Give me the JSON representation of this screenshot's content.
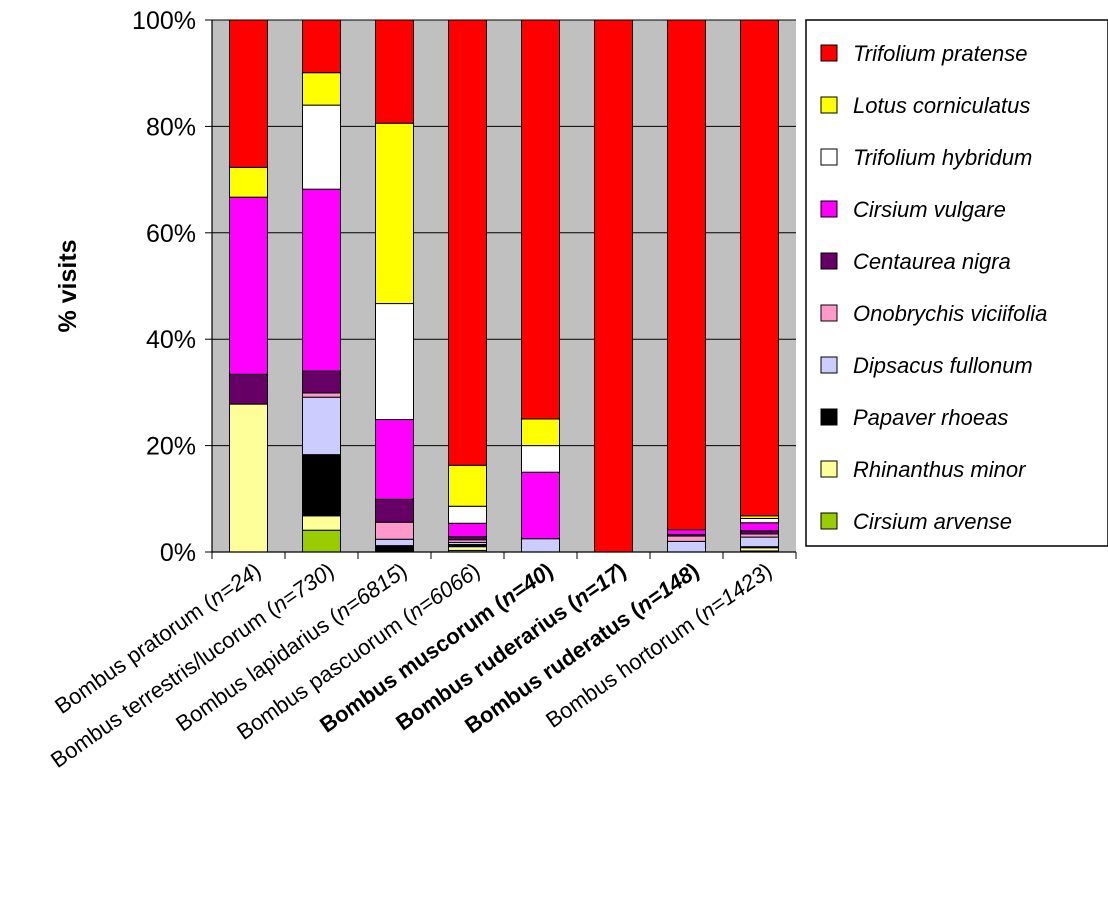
{
  "chart_data": {
    "type": "bar",
    "stacked": true,
    "normalized_percent": true,
    "title": "",
    "ylabel": "% visits",
    "xlabel": "",
    "ylim": [
      0,
      100
    ],
    "yticks": [
      "0%",
      "20%",
      "40%",
      "60%",
      "80%",
      "100%"
    ],
    "grid": "horizontal",
    "plot_background": "#c0c0c0",
    "legend_position": "right",
    "categories": [
      {
        "species": "Bombus pratorum",
        "n": "n=24",
        "bold": false
      },
      {
        "species": "Bombus terrestris/lucorum",
        "n": "n=730",
        "bold": false
      },
      {
        "species": "Bombus lapidarius",
        "n": "n=6815",
        "bold": false
      },
      {
        "species": "Bombus pascuorum",
        "n": "n=6066",
        "bold": false
      },
      {
        "species": "Bombus muscorum",
        "n": "n=40",
        "bold": true
      },
      {
        "species": "Bombus ruderarius",
        "n": "n=17",
        "bold": true
      },
      {
        "species": "Bombus ruderatus",
        "n": "n=148",
        "bold": true
      },
      {
        "species": "Bombus hortorum",
        "n": "n=1423",
        "bold": false
      }
    ],
    "series": [
      {
        "name": "Cirsium arvense",
        "color": "#99cc00",
        "values": [
          0,
          4.1,
          0,
          0.3,
          0,
          0,
          0,
          0.2
        ]
      },
      {
        "name": "Rhinanthus minor",
        "color": "#ffff99",
        "values": [
          27.8,
          2.7,
          0.2,
          0.7,
          0,
          0,
          0,
          0.6
        ]
      },
      {
        "name": "Papaver rhoeas",
        "color": "#000000",
        "values": [
          0,
          11.5,
          1.0,
          0.4,
          0,
          0,
          0,
          0.2
        ]
      },
      {
        "name": "Dipsacus fullonum",
        "color": "#ccccff",
        "values": [
          0,
          10.8,
          1.2,
          0.4,
          2.5,
          0,
          2.0,
          1.8
        ]
      },
      {
        "name": "Onobrychis viciifolia",
        "color": "#ff99cc",
        "values": [
          0,
          0.8,
          3.2,
          0.5,
          0,
          0,
          1.0,
          0.6
        ]
      },
      {
        "name": "Centaurea nigra",
        "color": "#660066",
        "values": [
          5.6,
          4.1,
          4.3,
          0.6,
          0,
          0,
          0.3,
          0.6
        ]
      },
      {
        "name": "Cirsium vulgare",
        "color": "#ff00ff",
        "values": [
          33.3,
          34.2,
          15.0,
          2.5,
          12.5,
          0,
          0.9,
          1.5
        ]
      },
      {
        "name": "Trifolium hybridum",
        "color": "#ffffff",
        "values": [
          0,
          15.8,
          21.8,
          3.2,
          5.0,
          0,
          0,
          0.8
        ]
      },
      {
        "name": "Lotus corniculatus",
        "color": "#ffff00",
        "values": [
          5.6,
          6.1,
          33.9,
          7.7,
          5.0,
          0,
          0,
          0.5
        ]
      },
      {
        "name": "Trifolium pratense",
        "color": "#ff0000",
        "values": [
          27.7,
          9.9,
          19.4,
          83.7,
          75.0,
          100,
          95.8,
          93.2
        ]
      }
    ],
    "legend": [
      "Trifolium pratense",
      "Lotus corniculatus",
      "Trifolium hybridum",
      "Cirsium vulgare",
      "Centaurea nigra",
      "Onobrychis viciifolia",
      "Dipsacus fullonum",
      "Papaver rhoeas",
      "Rhinanthus minor",
      "Cirsium arvense"
    ]
  }
}
